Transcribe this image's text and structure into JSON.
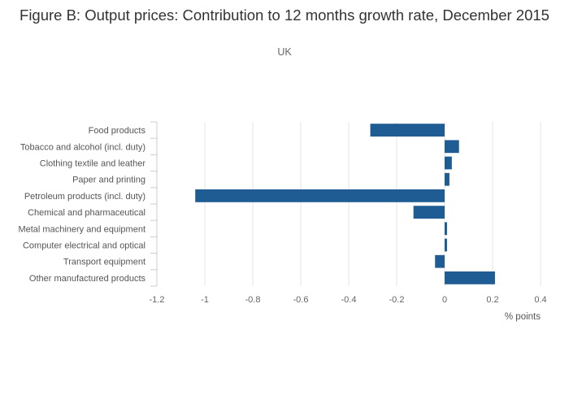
{
  "title": "Figure B: Output prices: Contribution to 12 months growth rate, December 2015",
  "subtitle": "UK",
  "chart_data": {
    "type": "bar",
    "orientation": "horizontal",
    "title": "Figure B: Output prices: Contribution to 12 months growth rate, December 2015",
    "subtitle": "UK",
    "xlabel": "% points",
    "ylabel": "",
    "xlim": [
      -1.2,
      0.4
    ],
    "xticks": [
      -1.2,
      -1,
      -0.8,
      -0.6,
      -0.4,
      -0.2,
      0,
      0.2,
      0.4
    ],
    "xtick_labels": [
      "-1.2",
      "-1",
      "-0.8",
      "-0.6",
      "-0.4",
      "-0.2",
      "0",
      "0.2",
      "0.4"
    ],
    "grid": true,
    "legend": "none",
    "bar_color": "#1f5c94",
    "categories": [
      "Food products",
      "Tobacco and alcohol (incl. duty)",
      "Clothing textile and leather",
      "Paper and printing",
      "Petroleum products (incl. duty)",
      "Chemical and pharmaceutical",
      "Metal machinery and equipment",
      "Computer electrical and optical",
      "Transport equipment",
      "Other manufactured products"
    ],
    "values": [
      -0.31,
      0.06,
      0.03,
      0.02,
      -1.04,
      -0.13,
      0.01,
      0.01,
      -0.04,
      0.21
    ]
  }
}
